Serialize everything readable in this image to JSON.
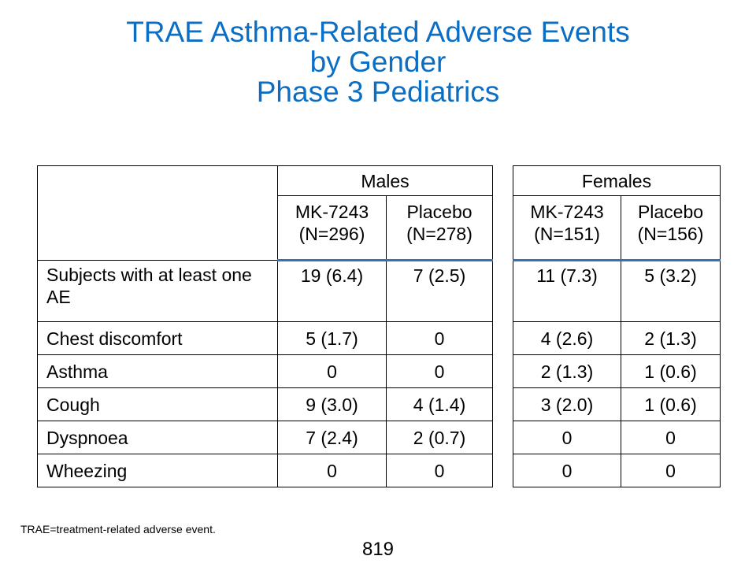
{
  "title": {
    "line1": "TRAE Asthma-Related Adverse Events",
    "line2": "by Gender",
    "line3": "Phase 3 Pediatrics"
  },
  "males": {
    "group_label": "Males",
    "col1_drug": "MK-7243",
    "col1_n": "(N=296)",
    "col2_drug": "Placebo",
    "col2_n": "(N=278)"
  },
  "females": {
    "group_label": "Females",
    "col1_drug": "MK-7243",
    "col1_n": "(N=151)",
    "col2_drug": "Placebo",
    "col2_n": "(N=156)"
  },
  "rows": [
    {
      "label": "Subjects with at least one AE",
      "m1": "19 (6.4)",
      "m2": "7 (2.5)",
      "f1": "11 (7.3)",
      "f2": "5 (3.2)"
    },
    {
      "label": "Chest discomfort",
      "m1": "5 (1.7)",
      "m2": "0",
      "f1": "4 (2.6)",
      "f2": "2 (1.3)"
    },
    {
      "label": "Asthma",
      "m1": "0",
      "m2": "0",
      "f1": "2 (1.3)",
      "f2": "1 (0.6)"
    },
    {
      "label": "Cough",
      "m1": "9 (3.0)",
      "m2": "4 (1.4)",
      "f1": "3 (2.0)",
      "f2": "1 (0.6)"
    },
    {
      "label": "Dyspnoea",
      "m1": "7 (2.4)",
      "m2": "2 (0.7)",
      "f1": "0",
      "f2": "0"
    },
    {
      "label": "Wheezing",
      "m1": "0",
      "m2": "0",
      "f1": "0",
      "f2": "0"
    }
  ],
  "footnote": "TRAE=treatment-related adverse event.",
  "page_number": "819",
  "colors": {
    "title": "#0b6ec5",
    "header_rule": "#2e72c0"
  }
}
